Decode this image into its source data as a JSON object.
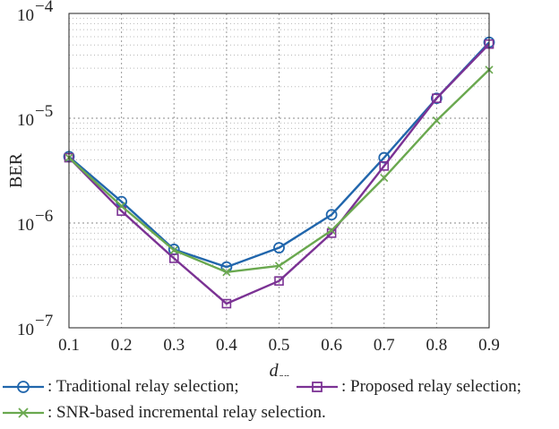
{
  "chart_data": {
    "type": "line",
    "x": [
      0.1,
      0.2,
      0.3,
      0.4,
      0.5,
      0.6,
      0.7,
      0.8,
      0.9
    ],
    "series": [
      {
        "name": ": Traditional relay selection;",
        "marker": "circle",
        "color": "#2166ac",
        "values": [
          4.3e-06,
          1.6e-06,
          5.6e-07,
          3.8e-07,
          5.8e-07,
          1.2e-06,
          4.2e-06,
          1.55e-05,
          5.3e-05
        ]
      },
      {
        "name": ": Proposed relay selection;",
        "marker": "square",
        "color": "#7b3294",
        "values": [
          4.2e-06,
          1.3e-06,
          4.6e-07,
          1.7e-07,
          2.8e-07,
          8e-07,
          3.5e-06,
          1.55e-05,
          5.1e-05
        ]
      },
      {
        "name": ": SNR-based incremental relay selection.",
        "marker": "x",
        "color": "#6aa84f",
        "values": [
          4.2e-06,
          1.45e-06,
          5.5e-07,
          3.4e-07,
          3.9e-07,
          8.5e-07,
          2.7e-06,
          9.5e-06,
          2.9e-05
        ]
      }
    ],
    "xlabel": "d",
    "xlabel_sub": "sr",
    "ylabel": "BER",
    "xlim": [
      0.1,
      0.9
    ],
    "ylim": [
      1e-07,
      0.0001
    ],
    "y_scale": "log",
    "xticks": [
      "0.1",
      "0.2",
      "0.3",
      "0.4",
      "0.5",
      "0.6",
      "0.7",
      "0.8",
      "0.9"
    ],
    "yticks": [
      {
        "base": "10",
        "exp": "−7",
        "value": 1e-07
      },
      {
        "base": "10",
        "exp": "−6",
        "value": 1e-06
      },
      {
        "base": "10",
        "exp": "−5",
        "value": 1e-05
      },
      {
        "base": "10",
        "exp": "−4",
        "value": 0.0001
      }
    ],
    "grid": true,
    "legend_position": "bottom"
  }
}
